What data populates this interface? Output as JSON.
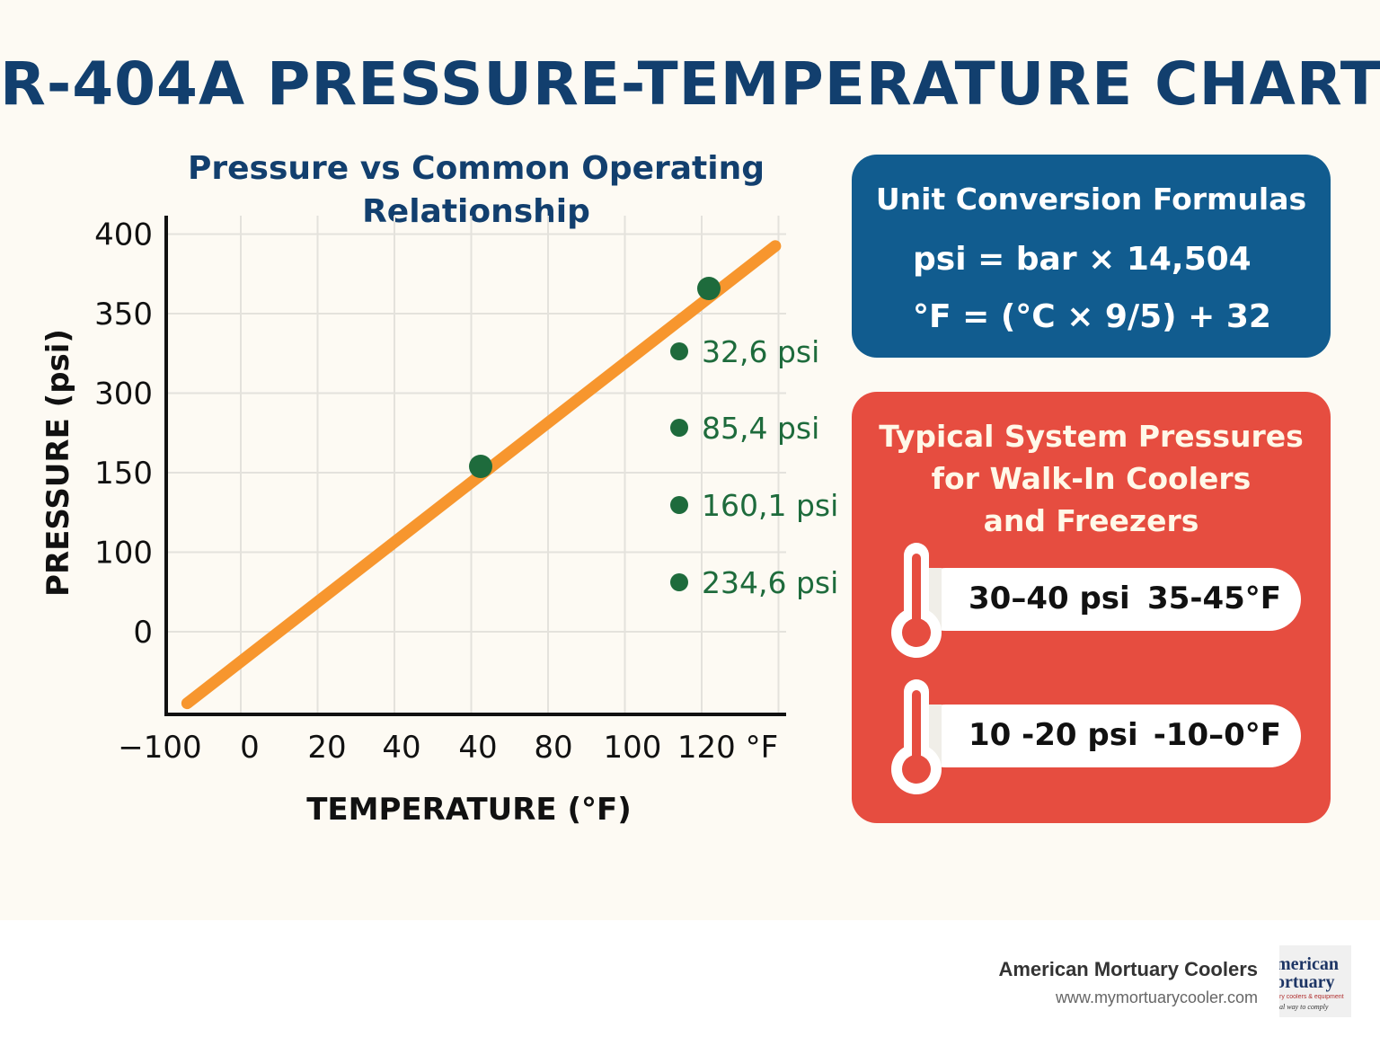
{
  "title": "R-404A PRESSURE-TEMPERATURE CHART",
  "subtitle_line1": "Pressure vs  Common Operating",
  "subtitle_line2": "Relationship",
  "chart_data": {
    "type": "line",
    "title": "Pressure vs  Common Operating Relationship",
    "xlabel": "TEMPERATURE (°F)",
    "ylabel": "PRESSURE (psi)",
    "x_tick_labels": [
      "−100",
      "0",
      "20",
      "40",
      "40",
      "80",
      "100",
      "120 °F"
    ],
    "y_tick_labels": [
      "400",
      "350",
      "300",
      "150",
      "100",
      "0"
    ],
    "grid": true,
    "series": [
      {
        "name": "R-404A",
        "color": "#f7962e",
        "line_index": [
          -0.3,
          7.8
        ],
        "y_index": [
          -0.9,
          4.85
        ]
      }
    ],
    "highlight_points": [
      {
        "x_index": 4.3,
        "y_index": 2.1,
        "color": "#1e6b3c"
      },
      {
        "x_index": 7.3,
        "y_index": 4.3,
        "color": "#1e6b3c"
      }
    ],
    "annotations": [
      "32,6 psi",
      "85,4 psi",
      "160,1 psi",
      "234,6 psi"
    ],
    "annotation_color": "#1e6b3c"
  },
  "conversion_panel": {
    "title": "Unit Conversion Formulas",
    "formula_1": "psi = bar × 14,504",
    "formula_2": "°F = (°C × 9/5) + 32",
    "color": "#115c8f"
  },
  "pressure_panel": {
    "title_line1": "Typical System Pressures",
    "title_line2": "for Walk-In Coolers",
    "title_line3": "and Freezers",
    "color": "#e64d40",
    "ranges": [
      {
        "psi": "30–40 psi",
        "temp": "35-45°F"
      },
      {
        "psi": "10 -20 psi",
        "temp": "-10–0°F"
      }
    ]
  },
  "footer": {
    "company": "American Mortuary Coolers",
    "url": "www.mymortuarycooler.com",
    "logo_line1": "merican",
    "logo_line2": "ortuary",
    "logo_line3": "ry coolers & equipment",
    "logo_line4": "al way to comply"
  }
}
